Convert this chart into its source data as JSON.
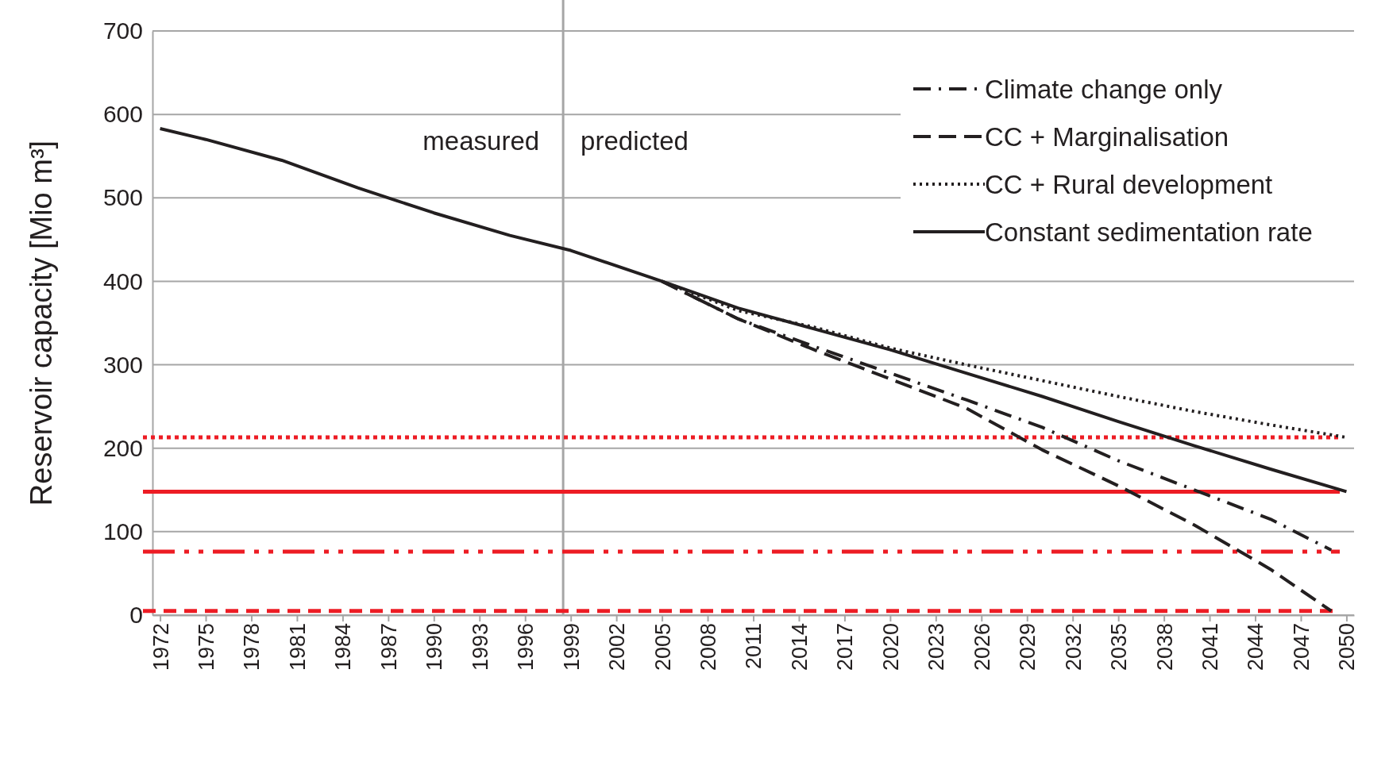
{
  "chart_data": {
    "type": "line",
    "ylabel": "Reservoir capacity [Mio m³]",
    "xlim": [
      1971.5,
      2050.5
    ],
    "xticks": [
      1972,
      1975,
      1978,
      1981,
      1984,
      1987,
      1990,
      1993,
      1996,
      1999,
      2002,
      2005,
      2008,
      2011,
      2014,
      2017,
      2020,
      2023,
      2026,
      2029,
      2032,
      2035,
      2038,
      2041,
      2044,
      2047,
      2050
    ],
    "ylim": [
      0,
      700
    ],
    "yticks": [
      0,
      100,
      200,
      300,
      400,
      500,
      600,
      700
    ],
    "grid": "y",
    "legend": "top right",
    "series": [
      {
        "name": "Climate change only",
        "color": "#231f20",
        "line_style": "dashdot",
        "x": [
          2005,
          2010,
          2015,
          2020,
          2025,
          2030,
          2035,
          2040,
          2045,
          2049
        ],
        "values": [
          400,
          355,
          322,
          290,
          258,
          225,
          185,
          150,
          115,
          78
        ]
      },
      {
        "name": "CC + Marginalisation",
        "color": "#231f20",
        "line_style": "dashed",
        "x": [
          2005,
          2010,
          2015,
          2020,
          2025,
          2030,
          2035,
          2040,
          2045,
          2049
        ],
        "values": [
          400,
          355,
          318,
          283,
          248,
          198,
          155,
          108,
          55,
          5
        ]
      },
      {
        "name": "CC + Rural development",
        "color": "#231f20",
        "line_style": "dotted",
        "x": [
          2005,
          2010,
          2015,
          2020,
          2025,
          2030,
          2035,
          2040,
          2045,
          2050
        ],
        "values": [
          400,
          365,
          345,
          320,
          300,
          281,
          262,
          244,
          228,
          213
        ]
      },
      {
        "name": "Constant sedimentation rate",
        "color": "#231f20",
        "line_style": "solid",
        "x": [
          1972,
          1975,
          1980,
          1985,
          1990,
          1995,
          1999,
          2005,
          2010,
          2015,
          2020,
          2025,
          2030,
          2035,
          2040,
          2045,
          2050
        ],
        "values": [
          583,
          570,
          545,
          512,
          482,
          455,
          437,
          400,
          368,
          343,
          318,
          290,
          262,
          232,
          203,
          175,
          148
        ]
      }
    ],
    "ref_lines": [
      {
        "axis": "x",
        "value": 1998.5,
        "color": "#a6a6a6",
        "line_style": "solid"
      },
      {
        "axis": "y",
        "value": 213,
        "color": "#ed1c24",
        "line_style": "dotted"
      },
      {
        "axis": "y",
        "value": 148,
        "color": "#ed1c24",
        "line_style": "solid"
      },
      {
        "axis": "y",
        "value": 76,
        "color": "#ed1c24",
        "line_style": "dashdotdot"
      },
      {
        "axis": "y",
        "value": 5,
        "color": "#ed1c24",
        "line_style": "dashed"
      }
    ],
    "annotations": [
      "measured",
      "predicted"
    ]
  }
}
